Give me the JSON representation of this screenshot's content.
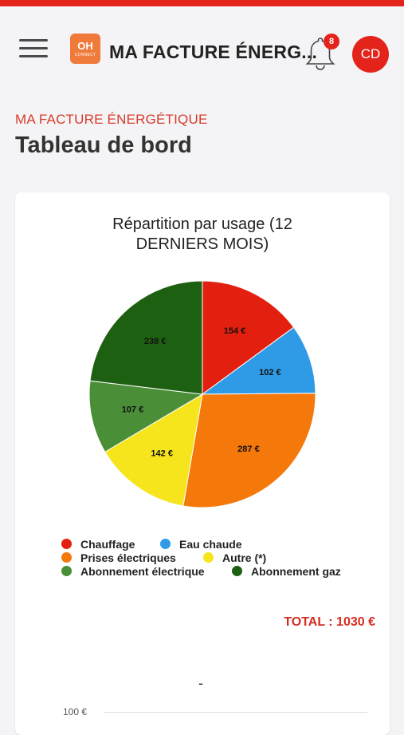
{
  "header": {
    "logo_line1": "OH",
    "logo_line2": "CONNECT",
    "title": "MA FACTURE ÉNERG...",
    "notification_count": "8",
    "avatar_initials": "CD"
  },
  "page": {
    "breadcrumb": "MA FACTURE ÉNERGÉTIQUE",
    "title": "Tableau de bord"
  },
  "chart": {
    "title_line1": "Répartition par usage (12",
    "title_line2": "DERNIERS MOIS)",
    "total": "TOTAL : 1030 €"
  },
  "chart_data": {
    "type": "pie",
    "title": "Répartition par usage (12 DERNIERS MOIS)",
    "slices": [
      {
        "name": "Chauffage",
        "value": 154,
        "label": "154 €",
        "color": "#e3200f"
      },
      {
        "name": "Eau chaude",
        "value": 102,
        "label": "102 €",
        "color": "#2f9ae6"
      },
      {
        "name": "Prises électriques",
        "value": 287,
        "label": "287 €",
        "color": "#f5780a"
      },
      {
        "name": "Autre (*)",
        "value": 142,
        "label": "142 €",
        "color": "#f6e41c"
      },
      {
        "name": "Abonnement électrique",
        "value": 107,
        "label": "107 €",
        "color": "#4a8f37"
      },
      {
        "name": "Abonnement gaz",
        "value": 238,
        "label": "238 €",
        "color": "#1e6012"
      }
    ],
    "legend_position": "bottom"
  },
  "second_chart": {
    "title": "-",
    "y_tick": "100 €"
  }
}
